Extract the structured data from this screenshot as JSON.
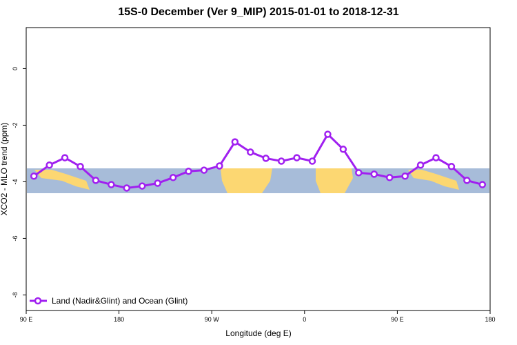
{
  "chart_data": {
    "type": "line",
    "title": "15S-0 December (Ver 9_MIP)   2015-01-01 to 2018-12-31",
    "x_label": "Longitude (deg E)",
    "y_label": "XCO2 - MLO trend (ppm)",
    "xlim": [
      90,
      540
    ],
    "ylim": [
      -8.55,
      1.45
    ],
    "xticks": [
      {
        "value": 90,
        "label": "90 E"
      },
      180,
      {
        "value": 270,
        "label": "90 W"
      },
      {
        "value": 360,
        "label": "0"
      },
      {
        "value": 450,
        "label": "90 E"
      },
      {
        "value": 540,
        "label": "180"
      }
    ],
    "yticks": [
      0,
      -2,
      -4,
      -6,
      -8
    ],
    "legend": "bottom-left",
    "x": [
      97.5,
      112.5,
      127.5,
      142.5,
      157.5,
      172.5,
      187.5,
      202.5,
      217.5,
      232.5,
      247.5,
      262.5,
      277.5,
      292.5,
      307.5,
      322.5,
      337.5,
      352.5,
      367.5,
      382.5,
      397.5,
      412.5,
      427.5,
      442.5,
      457.5,
      472.5,
      487.5,
      502.5,
      517.5,
      532.5
    ],
    "series": [
      {
        "name": "Land (Nadir&Glint) and Ocean (Glint)",
        "color": "#a020f0",
        "values": [
          -3.8,
          -3.41,
          -3.15,
          -3.46,
          -3.95,
          -4.1,
          -4.22,
          -4.15,
          -4.05,
          -3.85,
          -3.63,
          -3.59,
          -3.44,
          -2.59,
          -2.95,
          -3.17,
          -3.27,
          -3.15,
          -3.27,
          -2.32,
          -2.85,
          -3.68,
          -3.73,
          -3.85,
          -3.8,
          -3.41,
          -3.15,
          -3.46,
          -3.95,
          -4.1
        ]
      }
    ]
  }
}
